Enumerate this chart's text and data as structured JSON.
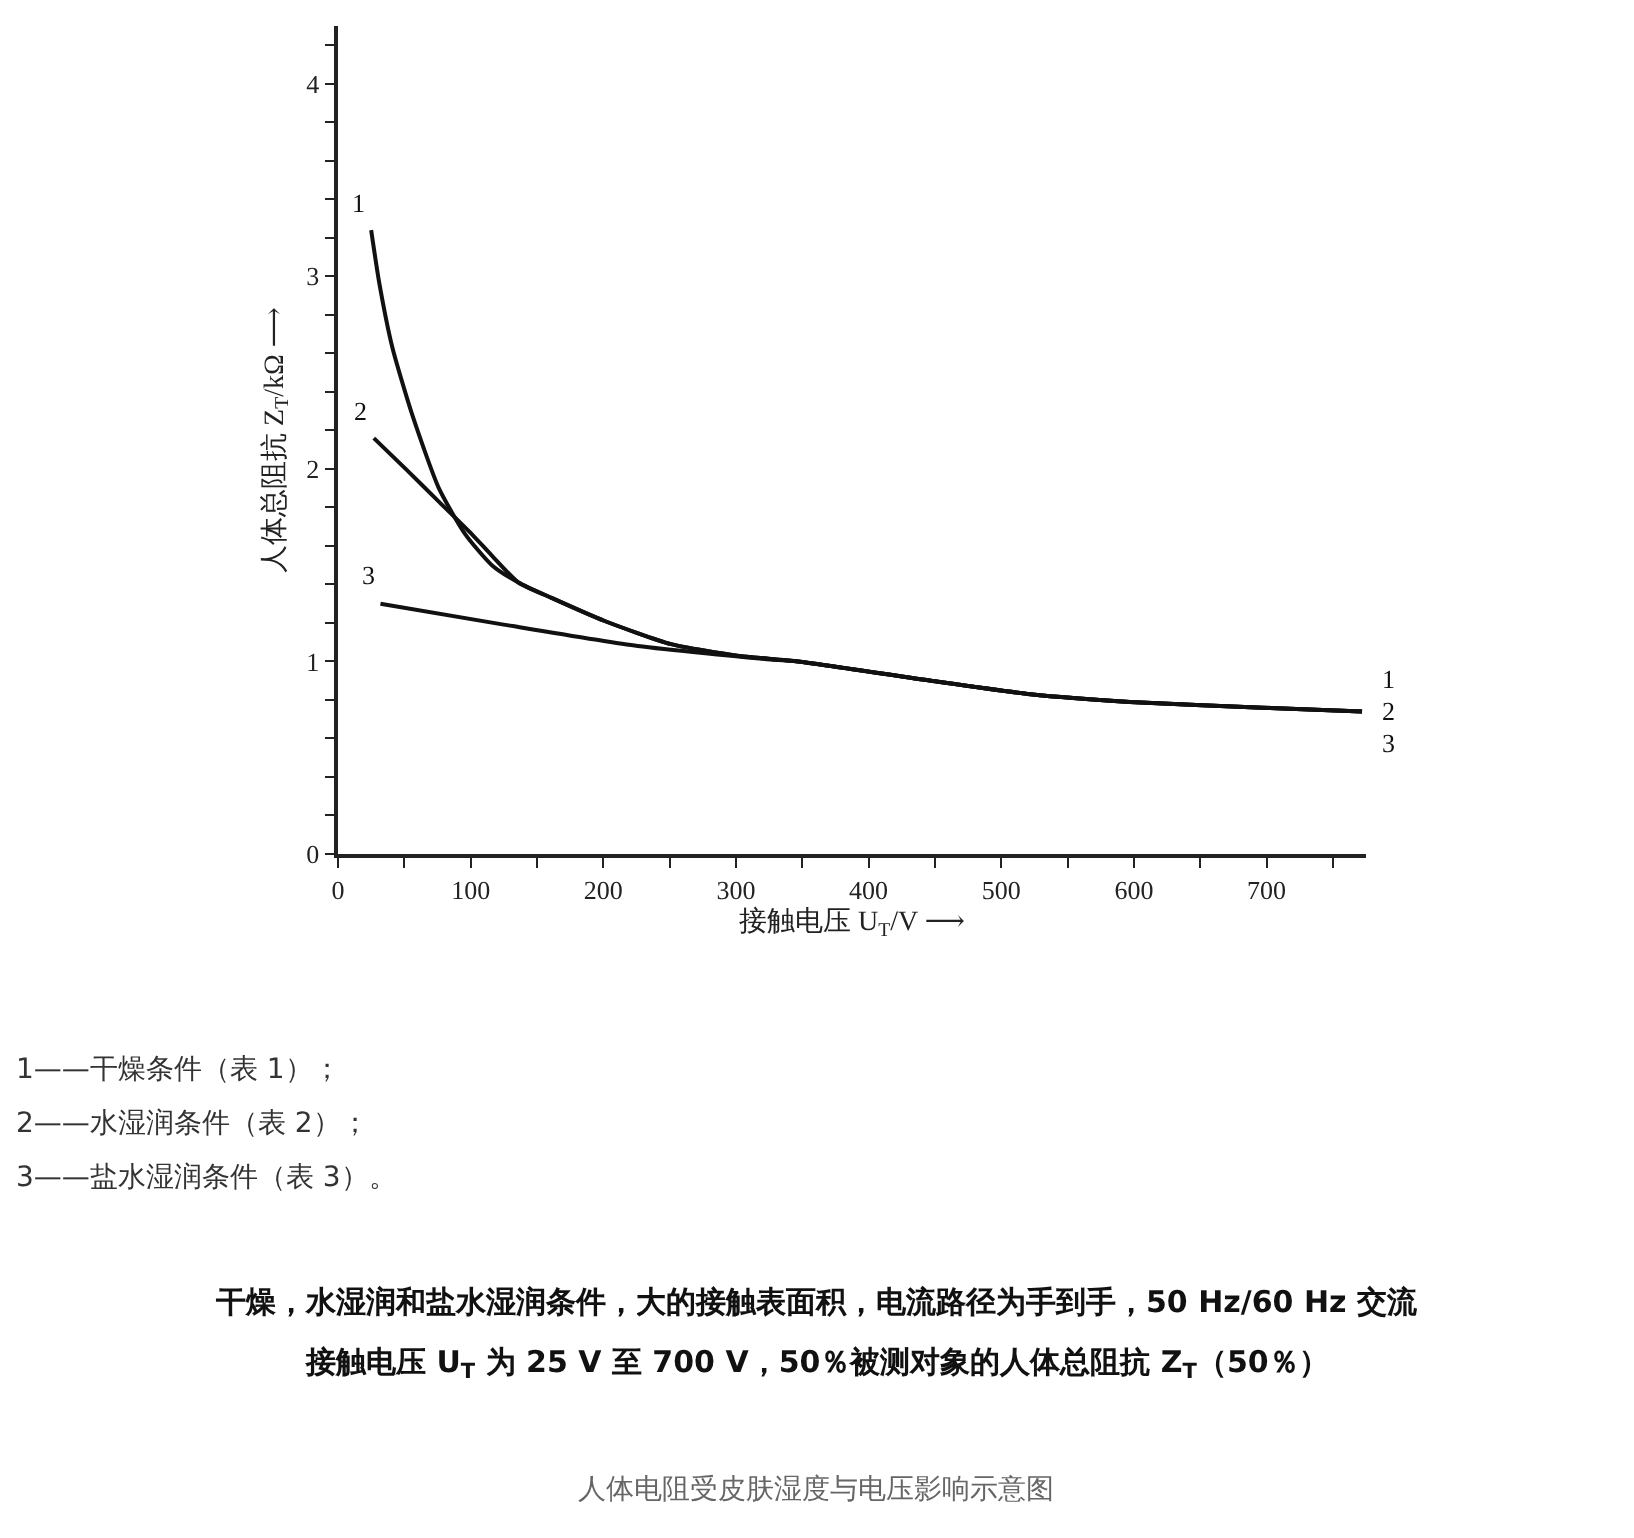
{
  "chart_data": {
    "type": "line",
    "xlabel": "接触电压 U$_{T}$/V ⟶",
    "ylabel": "人体总阻抗 Z$_{T}$/kΩ ⟶",
    "xlim": [
      0,
      775
    ],
    "ylim": [
      0,
      4.3
    ],
    "xticks": [
      0,
      {
        "value": 50,
        "label": null
      },
      100,
      {
        "value": 150,
        "label": null
      },
      200,
      {
        "value": 250,
        "label": null
      },
      300,
      {
        "value": 350,
        "label": null
      },
      400,
      {
        "value": 450,
        "label": null
      },
      500,
      {
        "value": 550,
        "label": null
      },
      600,
      {
        "value": 650,
        "label": null
      },
      700,
      {
        "value": 750,
        "label": null
      }
    ],
    "yticks": [
      0,
      {
        "value": 0.2,
        "label": null
      },
      {
        "value": 0.4,
        "label": null
      },
      {
        "value": 0.6,
        "label": null
      },
      {
        "value": 0.8,
        "label": null
      },
      1,
      {
        "value": 1.2,
        "label": null
      },
      {
        "value": 1.4,
        "label": null
      },
      {
        "value": 1.6,
        "label": null
      },
      {
        "value": 1.8,
        "label": null
      },
      2,
      {
        "value": 2.2,
        "label": null
      },
      {
        "value": 2.4,
        "label": null
      },
      {
        "value": 2.6,
        "label": null
      },
      {
        "value": 2.8,
        "label": null
      },
      3,
      {
        "value": 3.2,
        "label": null
      },
      {
        "value": 3.4,
        "label": null
      },
      {
        "value": 3.6,
        "label": null
      },
      {
        "value": 3.8,
        "label": null
      },
      4,
      {
        "value": 4.2,
        "label": null
      }
    ],
    "legend": false,
    "marker": "none",
    "line_style": "solid",
    "series": [
      {
        "name": "1",
        "color": "#111111",
        "x": [
          25,
          31,
          41,
          56,
          76,
          96,
          116,
          136,
          161,
          201,
          251,
          301,
          347,
          447,
          522,
          597,
          697,
          772
        ],
        "values": [
          3.24,
          2.97,
          2.63,
          2.28,
          1.9,
          1.66,
          1.5,
          1.41,
          1.33,
          1.21,
          1.09,
          1.03,
          1.0,
          0.9,
          0.83,
          0.79,
          0.76,
          0.74
        ]
      },
      {
        "name": "2",
        "color": "#111111",
        "x": [
          27,
          51,
          76,
          101,
          116,
          136,
          161,
          201,
          251,
          301,
          347,
          447,
          522,
          597,
          697,
          772
        ],
        "values": [
          2.16,
          2.0,
          1.83,
          1.66,
          1.55,
          1.41,
          1.33,
          1.21,
          1.09,
          1.03,
          1.0,
          0.9,
          0.83,
          0.79,
          0.76,
          0.74
        ]
      },
      {
        "name": "3",
        "color": "#111111",
        "x": [
          32,
          126,
          226,
          326,
          347,
          447,
          522,
          597,
          697,
          772
        ],
        "values": [
          1.3,
          1.19,
          1.08,
          1.01,
          1.0,
          0.9,
          0.83,
          0.79,
          0.76,
          0.74
        ]
      }
    ],
    "annotations": [
      "1——干燥条件（表 1）；",
      "2——水湿润条件（表 2）；",
      "3——盐水湿润条件（表 3）。",
      "干燥，水湿润和盐水湿润条件，大的接触表面积，电流路径为手到手，50 Hz/60 Hz 交流",
      "接触电压 U$_{T}$ 为 25 V 至 700 V，50％被测对象的人体总阻抗 Z$_{T}$（50％）",
      "人体电阻受皮肤湿度与电压影响示意图"
    ]
  }
}
